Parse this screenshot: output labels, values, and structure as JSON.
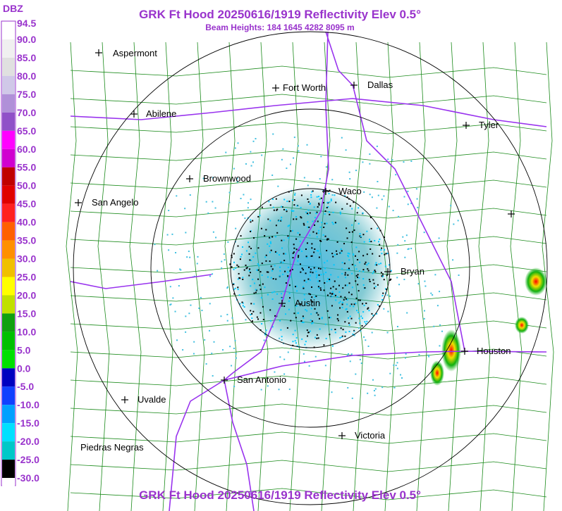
{
  "header": {
    "title": "GRK Ft Hood 20250616/1919 Reflectivity Elev 0.5°",
    "subtitle": "Beam Heights: 184 1645 4282 8095 m"
  },
  "legend": {
    "unit": "DBZ",
    "labels": [
      "94.5",
      "90.0",
      "85.0",
      "80.0",
      "75.0",
      "70.0",
      "65.0",
      "60.0",
      "55.0",
      "50.0",
      "45.0",
      "40.0",
      "35.0",
      "30.0",
      "25.0",
      "20.0",
      "15.0",
      "10.0",
      "5.0",
      "0.0",
      "-5.0",
      "-10.0",
      "-15.0",
      "-20.0",
      "-25.0",
      "-30.0"
    ]
  },
  "cities": [
    "Aspermont",
    "Abilene",
    "Fort Worth",
    "Dallas",
    "Tyler",
    "Brownwood",
    "Waco",
    "San Angelo",
    "Bryan",
    "Austin",
    "Houston",
    "San Antonio",
    "Uvalde",
    "Victoria",
    "Piedras Negras"
  ]
}
